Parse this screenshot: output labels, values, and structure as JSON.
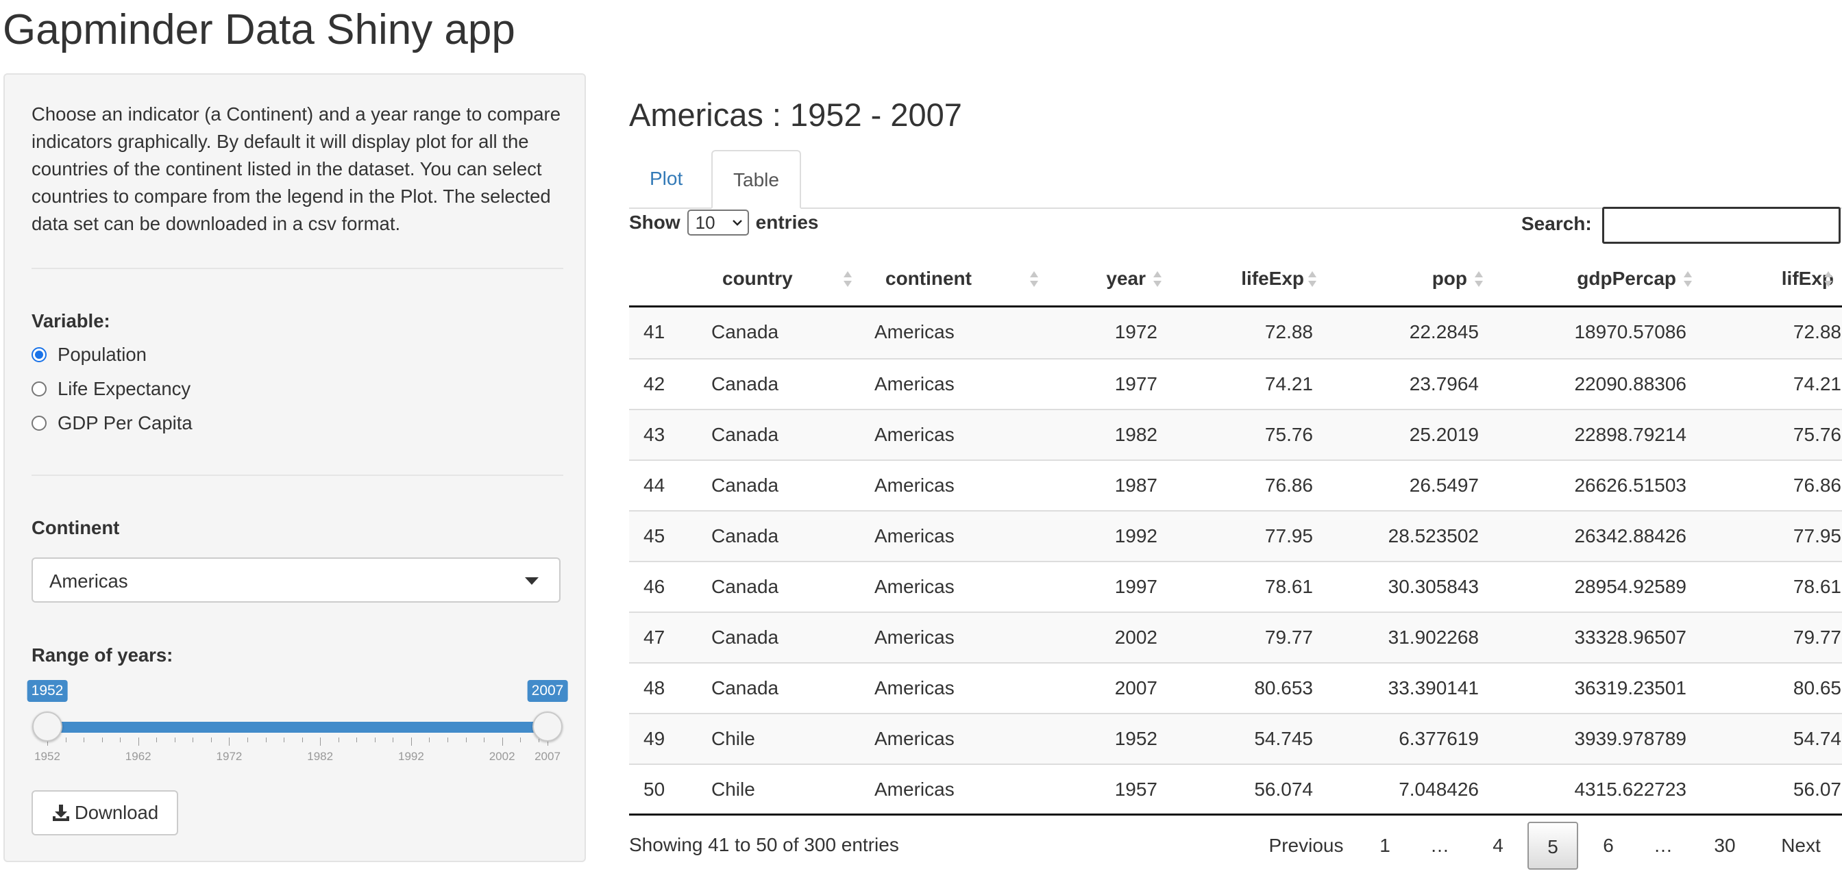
{
  "app_title": "Gapminder Data Shiny app",
  "sidebar": {
    "description": "Choose an indicator (a Continent) and a year range to compare indicators graphically. By default it will display plot for all the countries of the continent listed in the dataset. You can select countries to compare from the legend in the Plot. The selected data set can be downloaded in a csv format.",
    "variable_label": "Variable:",
    "variable_options": [
      {
        "label": "Population",
        "checked": true
      },
      {
        "label": "Life Expectancy",
        "checked": false
      },
      {
        "label": "GDP Per Capita",
        "checked": false
      }
    ],
    "continent_label": "Continent",
    "continent_value": "Americas",
    "range_label": "Range of years:",
    "range": {
      "min": 1952,
      "max": 2007,
      "from": "1952",
      "to": "2007"
    },
    "range_ticks": [
      "1952",
      "1962",
      "1972",
      "1982",
      "1992",
      "2002",
      "2007"
    ],
    "download_label": "Download",
    "download_icon": "download-icon"
  },
  "main": {
    "title": "Americas : 1952 - 2007",
    "tabs": [
      {
        "label": "Plot",
        "active": false
      },
      {
        "label": "Table",
        "active": true
      }
    ],
    "length": {
      "show_label": "Show",
      "value": "10",
      "entries_label": "entries"
    },
    "search_label": "Search:",
    "search_value": "",
    "table": {
      "columns": [
        "",
        "country",
        "continent",
        "year",
        "lifeExp",
        "pop",
        "gdpPercap",
        "lifExp"
      ],
      "rows": [
        [
          "41",
          "Canada",
          "Americas",
          "1972",
          "72.88",
          "22.2845",
          "18970.57086",
          "72.88"
        ],
        [
          "42",
          "Canada",
          "Americas",
          "1977",
          "74.21",
          "23.7964",
          "22090.88306",
          "74.21"
        ],
        [
          "43",
          "Canada",
          "Americas",
          "1982",
          "75.76",
          "25.2019",
          "22898.79214",
          "75.76"
        ],
        [
          "44",
          "Canada",
          "Americas",
          "1987",
          "76.86",
          "26.5497",
          "26626.51503",
          "76.86"
        ],
        [
          "45",
          "Canada",
          "Americas",
          "1992",
          "77.95",
          "28.523502",
          "26342.88426",
          "77.95"
        ],
        [
          "46",
          "Canada",
          "Americas",
          "1997",
          "78.61",
          "30.305843",
          "28954.92589",
          "78.61"
        ],
        [
          "47",
          "Canada",
          "Americas",
          "2002",
          "79.77",
          "31.902268",
          "33328.96507",
          "79.77"
        ],
        [
          "48",
          "Canada",
          "Americas",
          "2007",
          "80.653",
          "33.390141",
          "36319.23501",
          "80.65"
        ],
        [
          "49",
          "Chile",
          "Americas",
          "1952",
          "54.745",
          "6.377619",
          "3939.978789",
          "54.74"
        ],
        [
          "50",
          "Chile",
          "Americas",
          "1957",
          "56.074",
          "7.048426",
          "4315.622723",
          "56.07"
        ]
      ]
    },
    "info": "Showing 41 to 50 of 300 entries",
    "pagination": [
      "Previous",
      "1",
      "…",
      "4",
      "5",
      "6",
      "…",
      "30",
      "Next"
    ],
    "current_page": "5"
  }
}
